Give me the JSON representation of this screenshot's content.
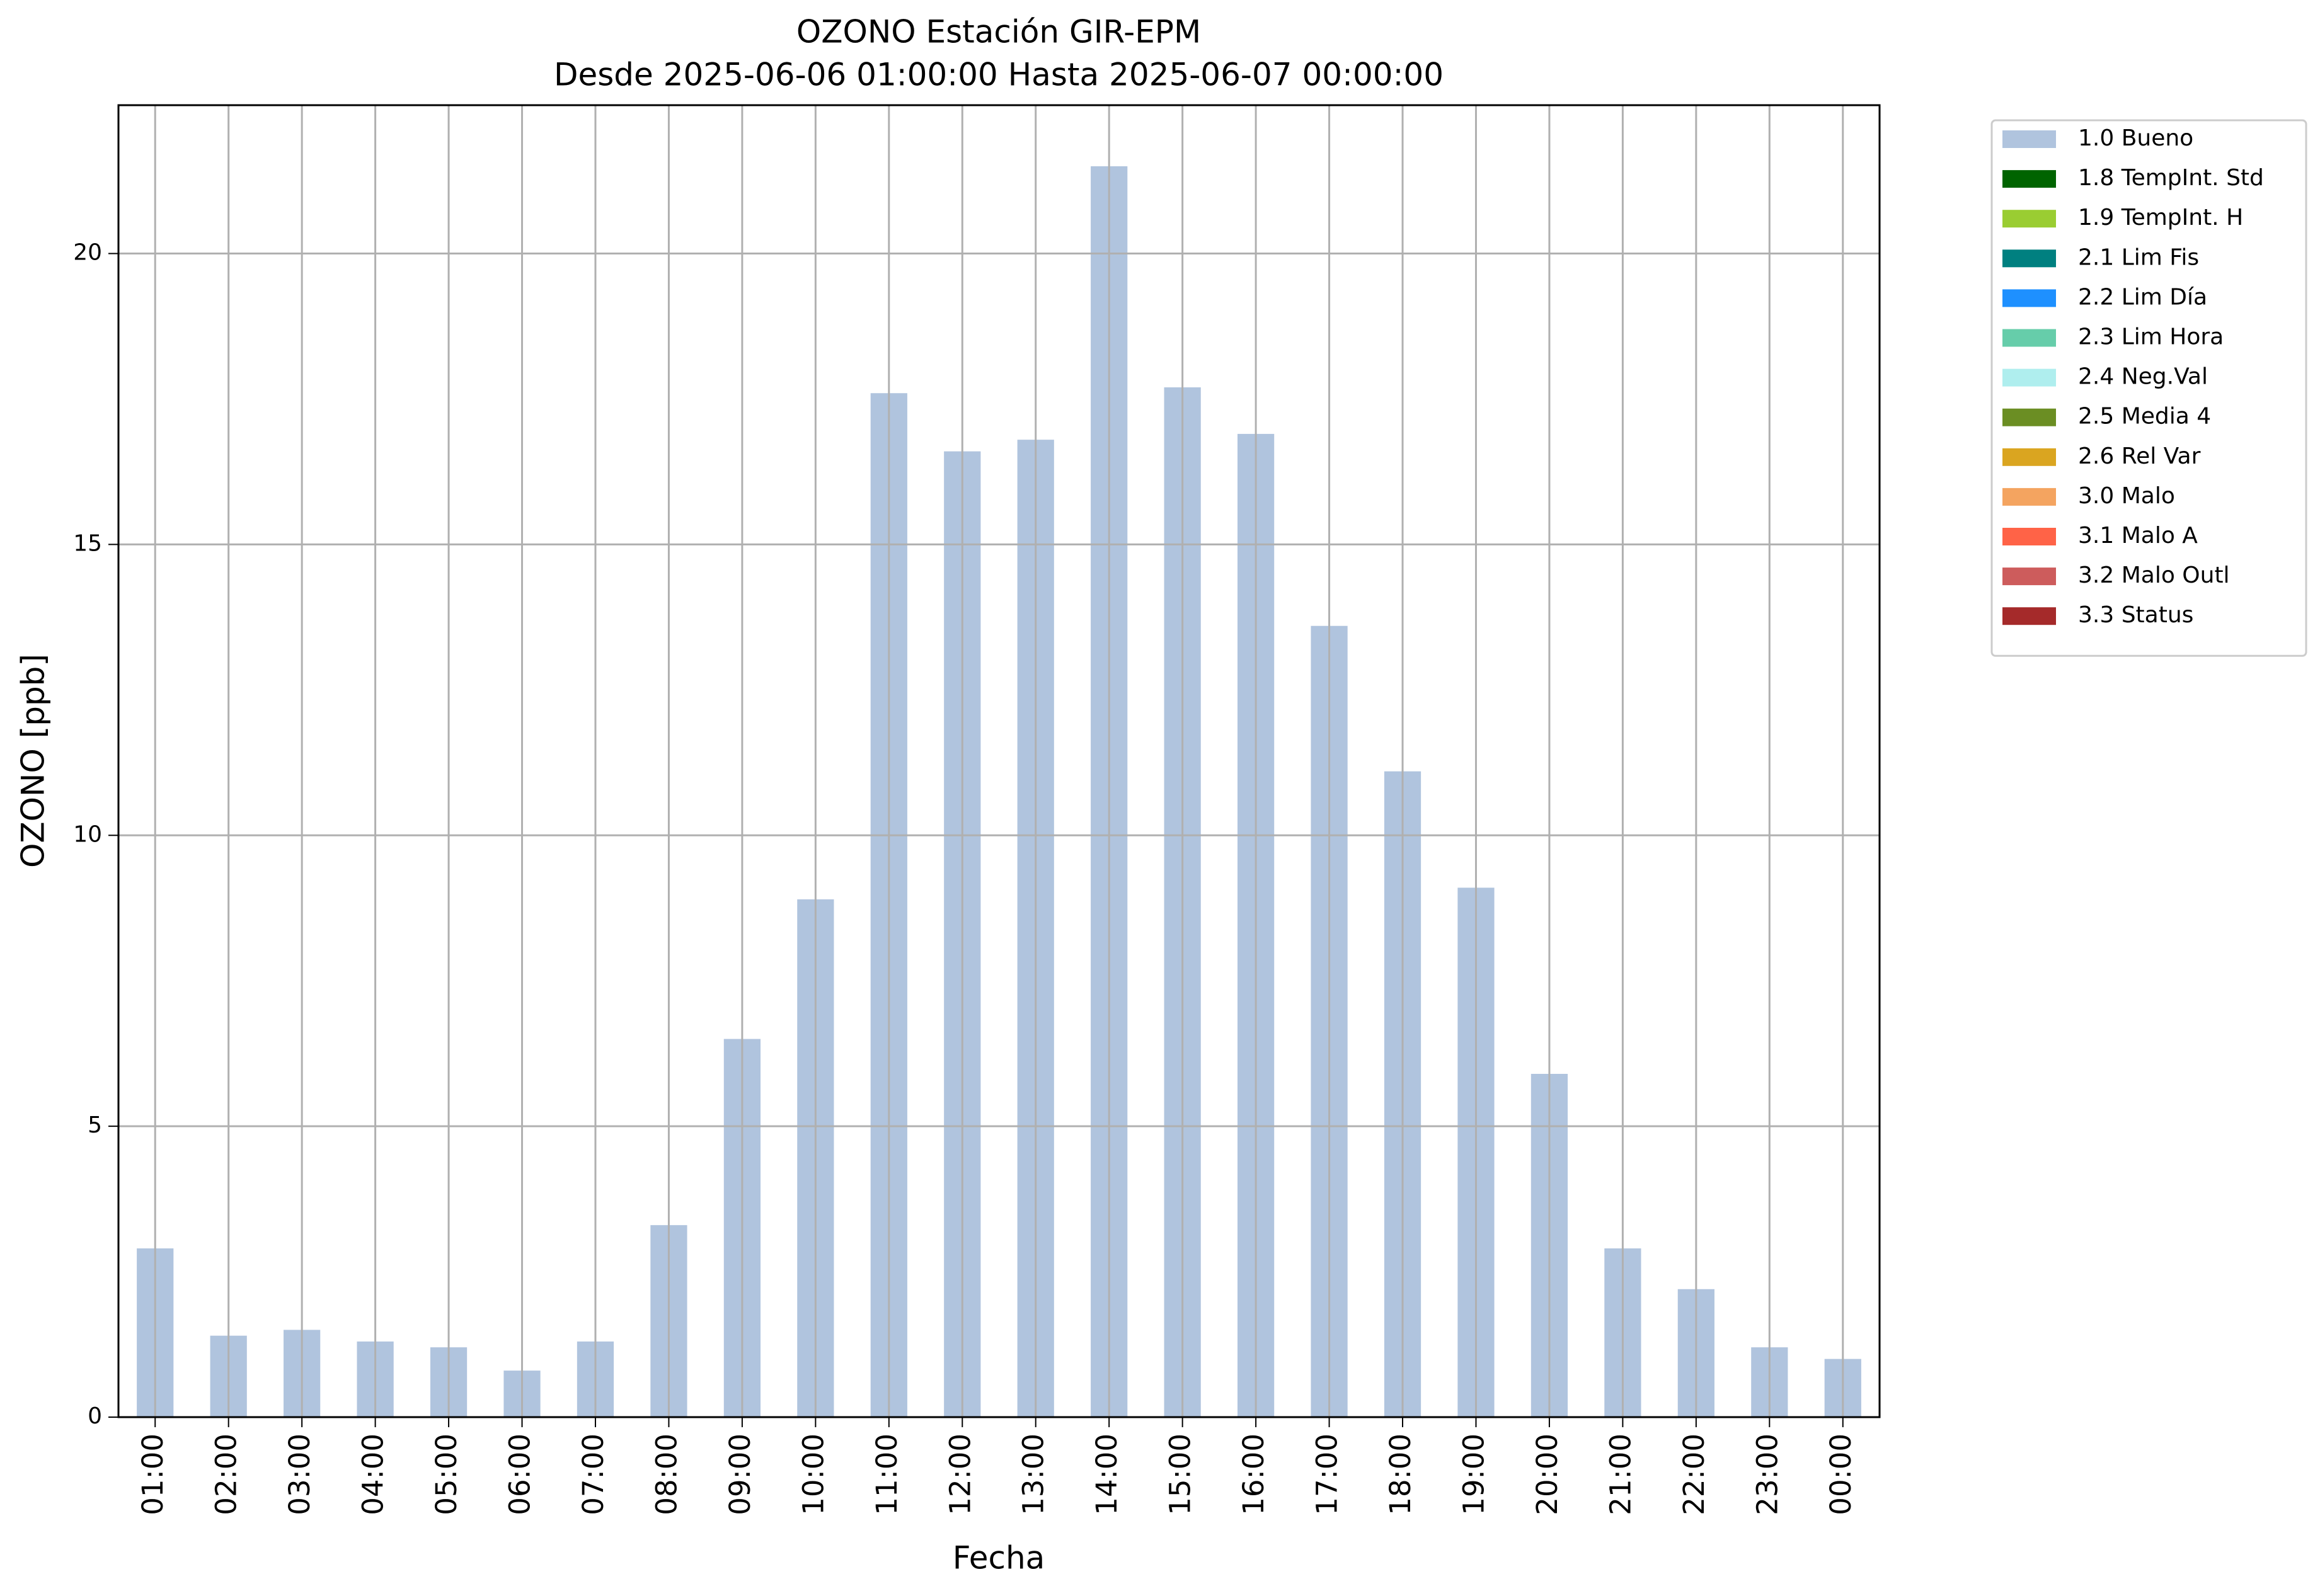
{
  "chart_data": {
    "type": "stacked_bar",
    "title": "OZONO Estación GIR-EPM",
    "subtitle": "Desde 2025-06-06 01:00:00 Hasta 2025-06-07 00:00:00",
    "xlabel": "Fecha",
    "ylabel": "OZONO [ppb]",
    "categories": [
      "01:00",
      "02:00",
      "03:00",
      "04:00",
      "05:00",
      "06:00",
      "07:00",
      "08:00",
      "09:00",
      "10:00",
      "11:00",
      "12:00",
      "13:00",
      "14:00",
      "15:00",
      "16:00",
      "17:00",
      "18:00",
      "19:00",
      "20:00",
      "21:00",
      "22:00",
      "23:00",
      "00:00"
    ],
    "series": [
      {
        "name": "1.0 Bueno",
        "color": "#b0c4de",
        "values": [
          2.9,
          1.4,
          1.5,
          1.3,
          1.2,
          0.8,
          1.3,
          3.3,
          6.5,
          8.9,
          17.6,
          16.6,
          16.8,
          21.5,
          17.7,
          16.9,
          13.6,
          11.1,
          9.1,
          5.9,
          2.9,
          2.2,
          1.2,
          1.0
        ]
      },
      {
        "name": "1.8 TempInt. Std",
        "color": "#006400",
        "values": [
          0,
          0,
          0,
          0,
          0,
          0,
          0,
          0,
          0,
          0,
          0,
          0,
          0,
          0,
          0,
          0,
          0,
          0,
          0,
          0,
          0,
          0,
          0,
          0
        ]
      },
      {
        "name": "1.9 TempInt. H",
        "color": "#9acd32",
        "values": [
          0,
          0,
          0,
          0,
          0,
          0,
          0,
          0,
          0,
          0,
          0,
          0,
          0,
          0,
          0,
          0,
          0,
          0,
          0,
          0,
          0,
          0,
          0,
          0
        ]
      },
      {
        "name": "2.1 Lim Fis",
        "color": "#008080",
        "values": [
          0,
          0,
          0,
          0,
          0,
          0,
          0,
          0,
          0,
          0,
          0,
          0,
          0,
          0,
          0,
          0,
          0,
          0,
          0,
          0,
          0,
          0,
          0,
          0
        ]
      },
      {
        "name": "2.2 Lim Día",
        "color": "#1e90ff",
        "values": [
          0,
          0,
          0,
          0,
          0,
          0,
          0,
          0,
          0,
          0,
          0,
          0,
          0,
          0,
          0,
          0,
          0,
          0,
          0,
          0,
          0,
          0,
          0,
          0
        ]
      },
      {
        "name": "2.3 Lim Hora",
        "color": "#66cdaa",
        "values": [
          0,
          0,
          0,
          0,
          0,
          0,
          0,
          0,
          0,
          0,
          0,
          0,
          0,
          0,
          0,
          0,
          0,
          0,
          0,
          0,
          0,
          0,
          0,
          0
        ]
      },
      {
        "name": "2.4 Neg.Val",
        "color": "#afeeee",
        "values": [
          0,
          0,
          0,
          0,
          0,
          0,
          0,
          0,
          0,
          0,
          0,
          0,
          0,
          0,
          0,
          0,
          0,
          0,
          0,
          0,
          0,
          0,
          0,
          0
        ]
      },
      {
        "name": "2.5 Media 4",
        "color": "#6b8e23",
        "values": [
          0,
          0,
          0,
          0,
          0,
          0,
          0,
          0,
          0,
          0,
          0,
          0,
          0,
          0,
          0,
          0,
          0,
          0,
          0,
          0,
          0,
          0,
          0,
          0
        ]
      },
      {
        "name": "2.6 Rel Var",
        "color": "#daa520",
        "values": [
          0,
          0,
          0,
          0,
          0,
          0,
          0,
          0,
          0,
          0,
          0,
          0,
          0,
          0,
          0,
          0,
          0,
          0,
          0,
          0,
          0,
          0,
          0,
          0
        ]
      },
      {
        "name": "3.0 Malo",
        "color": "#f4a460",
        "values": [
          0,
          0,
          0,
          0,
          0,
          0,
          0,
          0,
          0,
          0,
          0,
          0,
          0,
          0,
          0,
          0,
          0,
          0,
          0,
          0,
          0,
          0,
          0,
          0
        ]
      },
      {
        "name": "3.1 Malo A",
        "color": "#ff6347",
        "values": [
          0,
          0,
          0,
          0,
          0,
          0,
          0,
          0,
          0,
          0,
          0,
          0,
          0,
          0,
          0,
          0,
          0,
          0,
          0,
          0,
          0,
          0,
          0,
          0
        ]
      },
      {
        "name": "3.2 Malo Outl",
        "color": "#cd5c5c",
        "values": [
          0,
          0,
          0,
          0,
          0,
          0,
          0,
          0,
          0,
          0,
          0,
          0,
          0,
          0,
          0,
          0,
          0,
          0,
          0,
          0,
          0,
          0,
          0,
          0
        ]
      },
      {
        "name": "3.3 Status",
        "color": "#a52a2a",
        "values": [
          0,
          0,
          0,
          0,
          0,
          0,
          0,
          0,
          0,
          0,
          0,
          0,
          0,
          0,
          0,
          0,
          0,
          0,
          0,
          0,
          0,
          0,
          0,
          0
        ]
      }
    ],
    "ylim": [
      0,
      22.55
    ],
    "yticks": [
      0,
      5,
      10,
      15,
      20
    ],
    "grid": true,
    "legend": "outside-upper-right"
  }
}
